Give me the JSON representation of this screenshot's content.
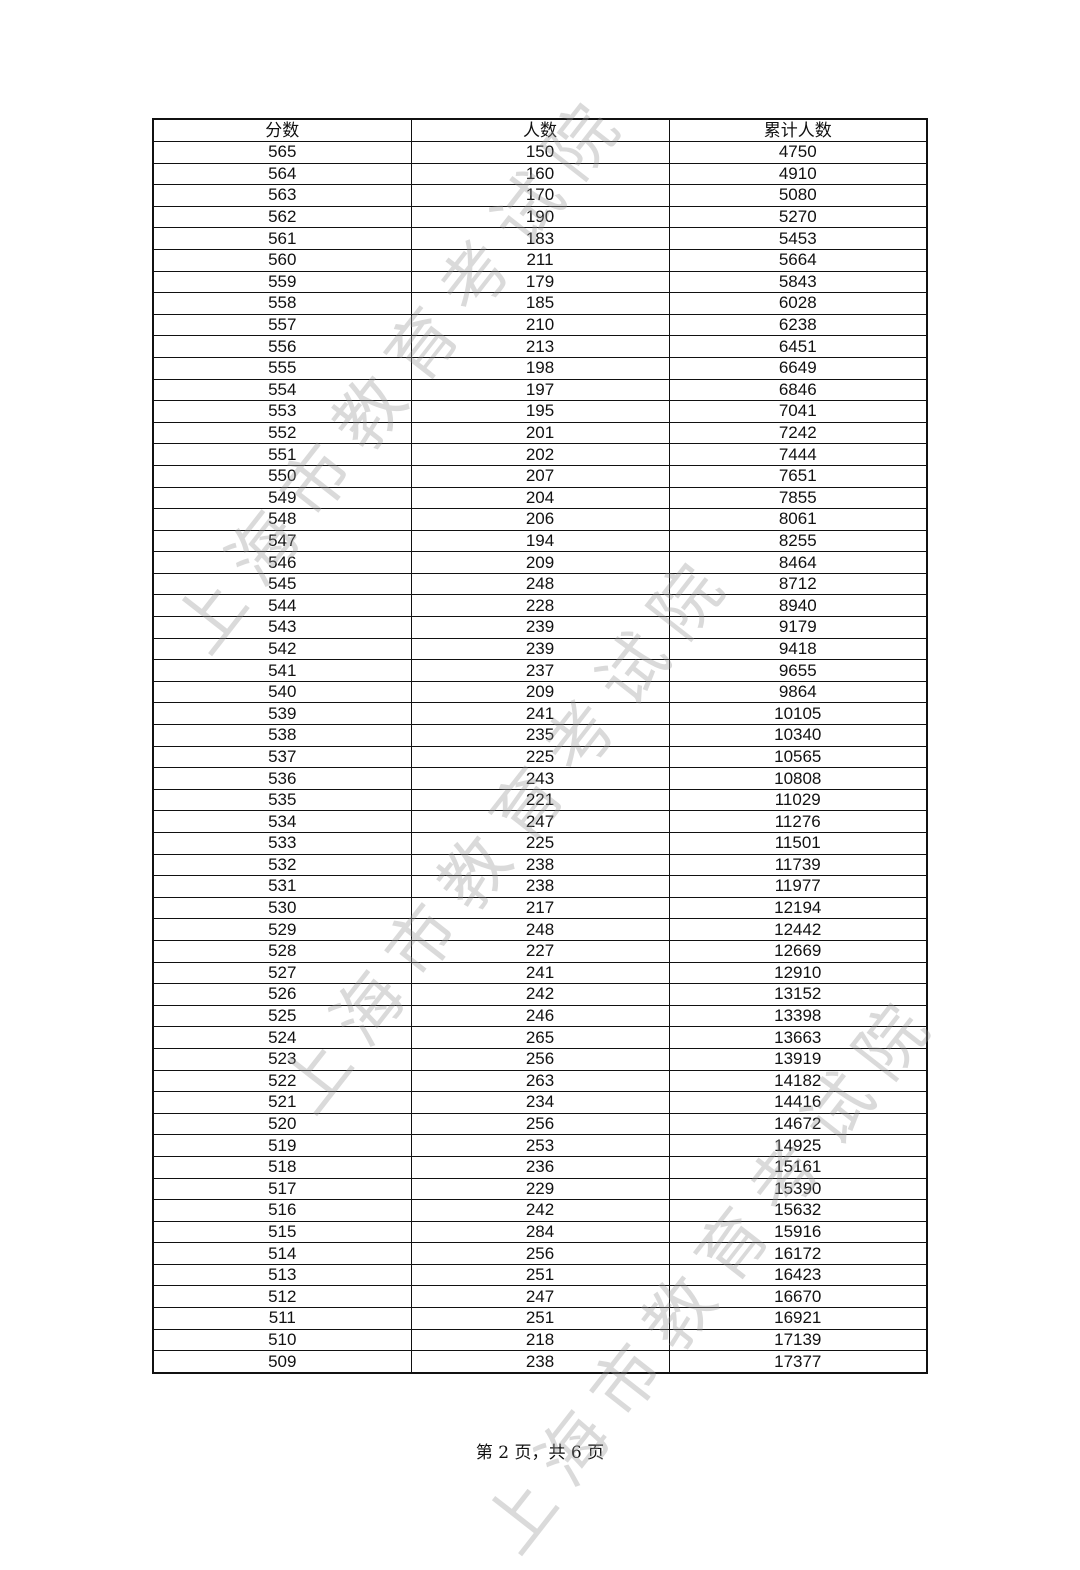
{
  "table": {
    "headers": [
      "分数",
      "人数",
      "累计人数"
    ],
    "rows": [
      [
        "565",
        "150",
        "4750"
      ],
      [
        "564",
        "160",
        "4910"
      ],
      [
        "563",
        "170",
        "5080"
      ],
      [
        "562",
        "190",
        "5270"
      ],
      [
        "561",
        "183",
        "5453"
      ],
      [
        "560",
        "211",
        "5664"
      ],
      [
        "559",
        "179",
        "5843"
      ],
      [
        "558",
        "185",
        "6028"
      ],
      [
        "557",
        "210",
        "6238"
      ],
      [
        "556",
        "213",
        "6451"
      ],
      [
        "555",
        "198",
        "6649"
      ],
      [
        "554",
        "197",
        "6846"
      ],
      [
        "553",
        "195",
        "7041"
      ],
      [
        "552",
        "201",
        "7242"
      ],
      [
        "551",
        "202",
        "7444"
      ],
      [
        "550",
        "207",
        "7651"
      ],
      [
        "549",
        "204",
        "7855"
      ],
      [
        "548",
        "206",
        "8061"
      ],
      [
        "547",
        "194",
        "8255"
      ],
      [
        "546",
        "209",
        "8464"
      ],
      [
        "545",
        "248",
        "8712"
      ],
      [
        "544",
        "228",
        "8940"
      ],
      [
        "543",
        "239",
        "9179"
      ],
      [
        "542",
        "239",
        "9418"
      ],
      [
        "541",
        "237",
        "9655"
      ],
      [
        "540",
        "209",
        "9864"
      ],
      [
        "539",
        "241",
        "10105"
      ],
      [
        "538",
        "235",
        "10340"
      ],
      [
        "537",
        "225",
        "10565"
      ],
      [
        "536",
        "243",
        "10808"
      ],
      [
        "535",
        "221",
        "11029"
      ],
      [
        "534",
        "247",
        "11276"
      ],
      [
        "533",
        "225",
        "11501"
      ],
      [
        "532",
        "238",
        "11739"
      ],
      [
        "531",
        "238",
        "11977"
      ],
      [
        "530",
        "217",
        "12194"
      ],
      [
        "529",
        "248",
        "12442"
      ],
      [
        "528",
        "227",
        "12669"
      ],
      [
        "527",
        "241",
        "12910"
      ],
      [
        "526",
        "242",
        "13152"
      ],
      [
        "525",
        "246",
        "13398"
      ],
      [
        "524",
        "265",
        "13663"
      ],
      [
        "523",
        "256",
        "13919"
      ],
      [
        "522",
        "263",
        "14182"
      ],
      [
        "521",
        "234",
        "14416"
      ],
      [
        "520",
        "256",
        "14672"
      ],
      [
        "519",
        "253",
        "14925"
      ],
      [
        "518",
        "236",
        "15161"
      ],
      [
        "517",
        "229",
        "15390"
      ],
      [
        "516",
        "242",
        "15632"
      ],
      [
        "515",
        "284",
        "15916"
      ],
      [
        "514",
        "256",
        "16172"
      ],
      [
        "513",
        "251",
        "16423"
      ],
      [
        "512",
        "247",
        "16670"
      ],
      [
        "511",
        "251",
        "16921"
      ],
      [
        "510",
        "218",
        "17139"
      ],
      [
        "509",
        "238",
        "17377"
      ]
    ]
  },
  "footer": {
    "page_label": "第 2 页，共 6 页"
  },
  "watermark": {
    "text": "上海市教育考试院"
  }
}
